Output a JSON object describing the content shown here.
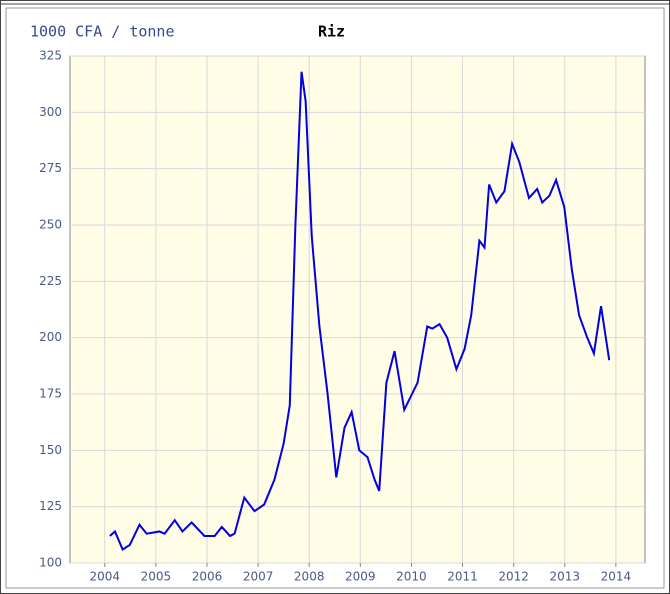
{
  "chart_data": {
    "type": "line",
    "title": "Riz",
    "ylabel": "1000 CFA / tonne",
    "x": [
      2004.1,
      2004.2,
      2004.35,
      2004.49,
      2004.68,
      2004.82,
      2005.07,
      2005.17,
      2005.37,
      2005.52,
      2005.7,
      2005.95,
      2006.15,
      2006.29,
      2006.45,
      2006.54,
      2006.73,
      2006.93,
      2007.12,
      2007.32,
      2007.5,
      2007.62,
      2007.73,
      2007.85,
      2007.93,
      2008.05,
      2008.2,
      2008.36,
      2008.53,
      2008.69,
      2008.83,
      2008.98,
      2009.14,
      2009.28,
      2009.37,
      2009.51,
      2009.67,
      2009.86,
      2010.12,
      2010.31,
      2010.41,
      2010.55,
      2010.7,
      2010.88,
      2011.04,
      2011.17,
      2011.33,
      2011.43,
      2011.52,
      2011.66,
      2011.82,
      2011.97,
      2012.11,
      2012.3,
      2012.46,
      2012.56,
      2012.7,
      2012.83,
      2012.99,
      2013.14,
      2013.28,
      2013.44,
      2013.57,
      2013.71,
      2013.87
    ],
    "series": [
      {
        "name": "Riz",
        "color": "#0000e0",
        "values": [
          112,
          114,
          106,
          108,
          117,
          113,
          114,
          113,
          119,
          114,
          118,
          112,
          112,
          116,
          112,
          113,
          129,
          123,
          126,
          137,
          153,
          170,
          250,
          318,
          305,
          245,
          205,
          175,
          138,
          160,
          167,
          150,
          147,
          137,
          132,
          180,
          194,
          168,
          180,
          205,
          204,
          206,
          200,
          186,
          195,
          210,
          243,
          240,
          268,
          260,
          265,
          286,
          278,
          262,
          266,
          260,
          263,
          270,
          258,
          230,
          210,
          200,
          193,
          214,
          190
        ]
      }
    ],
    "xlim": [
      2003.32,
      2014.57
    ],
    "xticks": [
      2004,
      2005,
      2006,
      2007,
      2008,
      2009,
      2010,
      2011,
      2012,
      2013,
      2014
    ],
    "ylim": [
      100,
      325
    ],
    "yticks": [
      100,
      125,
      150,
      175,
      200,
      225,
      250,
      275,
      300,
      325
    ],
    "grid": true
  }
}
